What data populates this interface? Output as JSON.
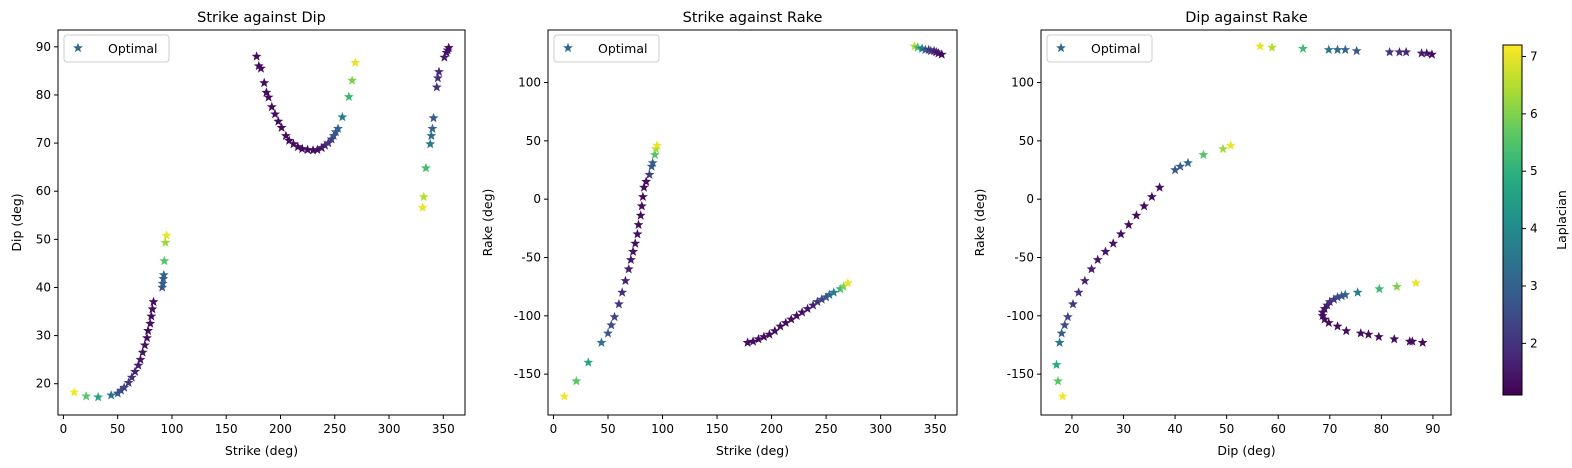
{
  "chart_data": [
    {
      "type": "scatter",
      "title": "Strike against Dip",
      "xlabel": "Strike (deg)",
      "ylabel": "Dip (deg)",
      "xlim": [
        -5,
        370
      ],
      "ylim": [
        13.5,
        93.5
      ],
      "xticks": [
        0,
        50,
        100,
        150,
        200,
        250,
        300,
        350
      ],
      "yticks": [
        20,
        30,
        40,
        50,
        60,
        70,
        80,
        90
      ],
      "legend": {
        "label": "Optimal",
        "position": "upper left"
      },
      "marker": "star",
      "series": [
        {
          "name": "Optimal",
          "points": [
            [
              10,
              18.2,
              7.1
            ],
            [
              21,
              17.4,
              5.6
            ],
            [
              32,
              17.2,
              4.7
            ],
            [
              44,
              17.6,
              3.4
            ],
            [
              50,
              18.0,
              2.8
            ],
            [
              53,
              18.6,
              2.5
            ],
            [
              56,
              19.2,
              2.3
            ],
            [
              60,
              20.2,
              2.0
            ],
            [
              63,
              21.3,
              1.9
            ],
            [
              66,
              22.5,
              1.7
            ],
            [
              69,
              23.8,
              1.6
            ],
            [
              71,
              25.0,
              1.5
            ],
            [
              73,
              26.5,
              1.45
            ],
            [
              75,
              28.0,
              1.4
            ],
            [
              77,
              29.5,
              1.35
            ],
            [
              78,
              31.0,
              1.3
            ],
            [
              80,
              32.5,
              1.3
            ],
            [
              81,
              34.0,
              1.3
            ],
            [
              82,
              35.5,
              1.3
            ],
            [
              83,
              37.0,
              1.3
            ],
            [
              91,
              40.0,
              2.8
            ],
            [
              91.5,
              40.8,
              2.9
            ],
            [
              92,
              41.8,
              3.0
            ],
            [
              92.5,
              42.6,
              3.1
            ],
            [
              93,
              45.5,
              5.5
            ],
            [
              94,
              49.3,
              6.3
            ],
            [
              95,
              50.8,
              7.0
            ],
            [
              178,
              88.0,
              1.3
            ],
            [
              180,
              86.0,
              1.3
            ],
            [
              182,
              85.5,
              1.3
            ],
            [
              185,
              82.5,
              1.3
            ],
            [
              187,
              80.5,
              1.3
            ],
            [
              189,
              79.5,
              1.3
            ],
            [
              192,
              77.5,
              1.3
            ],
            [
              195,
              76.0,
              1.3
            ],
            [
              198,
              74.5,
              1.3
            ],
            [
              201,
              73.2,
              1.3
            ],
            [
              205,
              71.5,
              1.3
            ],
            [
              208,
              70.5,
              1.3
            ],
            [
              212,
              69.8,
              1.3
            ],
            [
              216,
              69.2,
              1.3
            ],
            [
              220,
              68.8,
              1.3
            ],
            [
              225,
              68.6,
              1.3
            ],
            [
              230,
              68.5,
              1.3
            ],
            [
              234,
              68.6,
              1.4
            ],
            [
              238,
              69.0,
              1.5
            ],
            [
              241,
              69.5,
              1.7
            ],
            [
              244,
              70.0,
              1.9
            ],
            [
              247,
              70.8,
              2.2
            ],
            [
              249,
              71.5,
              2.6
            ],
            [
              251,
              72.3,
              2.8
            ],
            [
              253,
              73.0,
              3.1
            ],
            [
              257,
              75.4,
              3.6
            ],
            [
              263,
              79.6,
              5.2
            ],
            [
              266,
              83.0,
              6.0
            ],
            [
              269,
              86.7,
              7.0
            ],
            [
              331,
              56.6,
              7.0
            ],
            [
              332,
              58.8,
              6.5
            ],
            [
              334,
              64.8,
              5.3
            ],
            [
              338,
              69.8,
              3.5
            ],
            [
              339,
              71.5,
              3.2
            ],
            [
              340,
              73.0,
              3.1
            ],
            [
              341,
              75.2,
              2.8
            ],
            [
              344,
              81.6,
              2.0
            ],
            [
              345,
              83.5,
              1.9
            ],
            [
              346,
              84.8,
              1.8
            ],
            [
              351,
              87.8,
              1.6
            ],
            [
              353,
              88.8,
              1.5
            ],
            [
              354,
              89.3,
              1.4
            ],
            [
              355,
              89.8,
              1.3
            ]
          ]
        }
      ]
    },
    {
      "type": "scatter",
      "title": "Strike against Rake",
      "xlabel": "Strike (deg)",
      "ylabel": "Rake (deg)",
      "xlim": [
        -5,
        370
      ],
      "ylim": [
        -185,
        145
      ],
      "xticks": [
        0,
        50,
        100,
        150,
        200,
        250,
        300,
        350
      ],
      "yticks": [
        -150,
        -100,
        -50,
        0,
        50,
        100
      ],
      "legend": {
        "label": "Optimal",
        "position": "upper left"
      },
      "marker": "star",
      "series": [
        {
          "name": "Optimal",
          "points": [
            [
              10,
              -169,
              7.1
            ],
            [
              21,
              -156,
              5.6
            ],
            [
              32,
              -140,
              4.7
            ],
            [
              44,
              -123,
              3.4
            ],
            [
              50,
              -115,
              2.8
            ],
            [
              53,
              -108,
              2.5
            ],
            [
              56,
              -101,
              2.3
            ],
            [
              60,
              -90,
              2.0
            ],
            [
              63,
              -80,
              1.9
            ],
            [
              66,
              -70,
              1.7
            ],
            [
              69,
              -60,
              1.6
            ],
            [
              71,
              -52,
              1.5
            ],
            [
              73,
              -45,
              1.45
            ],
            [
              75,
              -38,
              1.4
            ],
            [
              77,
              -30,
              1.35
            ],
            [
              78,
              -22,
              1.3
            ],
            [
              80,
              -14,
              1.3
            ],
            [
              81,
              -6,
              1.3
            ],
            [
              82,
              2,
              1.3
            ],
            [
              83,
              10,
              1.3
            ],
            [
              85,
              15,
              1.3
            ],
            [
              88,
              21,
              2.2
            ],
            [
              90,
              28,
              2.8
            ],
            [
              91,
              31,
              2.9
            ],
            [
              93,
              38,
              5.5
            ],
            [
              94,
              43,
              6.3
            ],
            [
              95,
              46,
              7.0
            ],
            [
              178,
              -123,
              1.3
            ],
            [
              183,
              -122,
              1.3
            ],
            [
              188,
              -120,
              1.3
            ],
            [
              193,
              -118,
              1.3
            ],
            [
              198,
              -116,
              1.3
            ],
            [
              203,
              -113,
              1.3
            ],
            [
              208,
              -109,
              1.3
            ],
            [
              213,
              -106,
              1.3
            ],
            [
              218,
              -103,
              1.3
            ],
            [
              223,
              -100,
              1.3
            ],
            [
              228,
              -97,
              1.4
            ],
            [
              233,
              -94,
              1.5
            ],
            [
              238,
              -91,
              1.7
            ],
            [
              242,
              -88,
              2.0
            ],
            [
              246,
              -86,
              2.4
            ],
            [
              250,
              -84,
              2.8
            ],
            [
              253,
              -82,
              3.1
            ],
            [
              257,
              -80,
              3.6
            ],
            [
              263,
              -77,
              5.2
            ],
            [
              266,
              -75,
              6.0
            ],
            [
              270,
              -72,
              7.0
            ],
            [
              331,
              131,
              6.6
            ],
            [
              334,
              130,
              5.3
            ],
            [
              338,
              129,
              3.6
            ],
            [
              341,
              128,
              3.0
            ],
            [
              344,
              128,
              2.2
            ],
            [
              346,
              127,
              2.0
            ],
            [
              349,
              127,
              1.8
            ],
            [
              351,
              126,
              1.6
            ],
            [
              353,
              125,
              1.5
            ],
            [
              356,
              124,
              1.3
            ]
          ]
        }
      ]
    },
    {
      "type": "scatter",
      "title": "Dip against Rake",
      "xlabel": "Dip (deg)",
      "ylabel": "Rake (deg)",
      "xlim": [
        14,
        93.5
      ],
      "ylim": [
        -185,
        145
      ],
      "xticks": [
        20,
        30,
        40,
        50,
        60,
        70,
        80,
        90
      ],
      "yticks": [
        -150,
        -100,
        -50,
        0,
        50,
        100
      ],
      "legend": {
        "label": "Optimal",
        "position": "upper left"
      },
      "marker": "star",
      "series": [
        {
          "name": "Optimal",
          "points": [
            [
              17,
              -142,
              4.8
            ],
            [
              17.3,
              -156,
              5.6
            ],
            [
              18.2,
              -169,
              7.1
            ],
            [
              17.6,
              -123,
              3.4
            ],
            [
              18,
              -115,
              2.8
            ],
            [
              18.6,
              -108,
              2.5
            ],
            [
              19.2,
              -101,
              2.3
            ],
            [
              20.2,
              -90,
              2.0
            ],
            [
              21.3,
              -80,
              1.9
            ],
            [
              22.5,
              -70,
              1.7
            ],
            [
              23.8,
              -60,
              1.6
            ],
            [
              25,
              -52,
              1.5
            ],
            [
              26.5,
              -45,
              1.45
            ],
            [
              28,
              -38,
              1.4
            ],
            [
              29.5,
              -30,
              1.35
            ],
            [
              31,
              -22,
              1.3
            ],
            [
              32.5,
              -14,
              1.3
            ],
            [
              34,
              -6,
              1.3
            ],
            [
              35.5,
              2,
              1.3
            ],
            [
              37,
              10,
              1.3
            ],
            [
              40,
              25,
              2.8
            ],
            [
              41,
              28,
              2.9
            ],
            [
              42.5,
              31,
              3.1
            ],
            [
              45.5,
              38,
              5.5
            ],
            [
              49.3,
              43,
              6.3
            ],
            [
              50.8,
              46,
              7.0
            ],
            [
              56.5,
              131,
              7.0
            ],
            [
              58.8,
              130,
              6.5
            ],
            [
              64.8,
              129,
              5.3
            ],
            [
              69.8,
              128,
              3.5
            ],
            [
              71.5,
              128,
              3.2
            ],
            [
              73,
              128,
              3.1
            ],
            [
              75.2,
              127,
              2.8
            ],
            [
              81.6,
              126,
              2.0
            ],
            [
              83.5,
              126,
              1.9
            ],
            [
              84.8,
              126,
              1.8
            ],
            [
              87.8,
              125,
              1.6
            ],
            [
              88.8,
              125,
              1.5
            ],
            [
              89.8,
              124,
              1.3
            ],
            [
              86.7,
              -72,
              7.0
            ],
            [
              83,
              -75,
              6.0
            ],
            [
              79.6,
              -77,
              5.2
            ],
            [
              75.4,
              -80,
              3.6
            ],
            [
              73,
              -82,
              3.1
            ],
            [
              72.3,
              -83,
              2.8
            ],
            [
              71.5,
              -84,
              2.6
            ],
            [
              70.8,
              -86,
              2.2
            ],
            [
              70,
              -88,
              1.9
            ],
            [
              69.5,
              -91,
              1.7
            ],
            [
              69,
              -94,
              1.5
            ],
            [
              68.6,
              -97,
              1.4
            ],
            [
              68.6,
              -100,
              1.3
            ],
            [
              69,
              -103,
              1.3
            ],
            [
              69.8,
              -106,
              1.3
            ],
            [
              71.5,
              -109,
              1.3
            ],
            [
              73.2,
              -113,
              1.3
            ],
            [
              76,
              -115,
              1.3
            ],
            [
              77.5,
              -116,
              1.3
            ],
            [
              79.5,
              -118,
              1.3
            ],
            [
              82.5,
              -120,
              1.3
            ],
            [
              85.5,
              -122,
              1.3
            ],
            [
              86,
              -122,
              1.3
            ],
            [
              88,
              -123,
              1.3
            ]
          ]
        }
      ]
    }
  ],
  "colorbar": {
    "label": "Laplacian",
    "range": [
      1.1,
      7.2
    ],
    "ticks": [
      2,
      3,
      4,
      5,
      6,
      7
    ]
  },
  "legend_marker_color": "#31688e"
}
